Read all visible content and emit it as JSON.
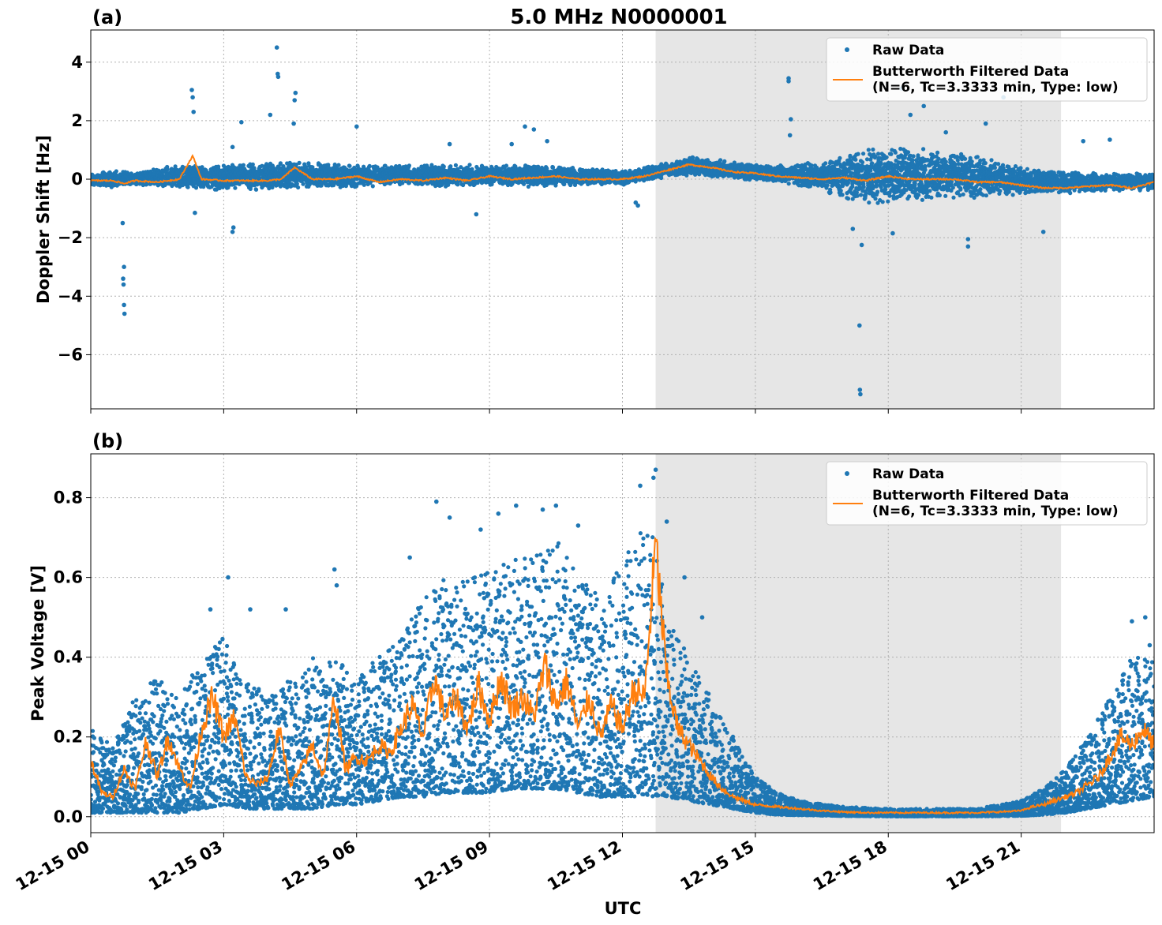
{
  "title": "5.0 MHz N0000001",
  "xlabel": "UTC",
  "x_tick_labels": [
    "12-15 00",
    "12-15 03",
    "12-15 06",
    "12-15 09",
    "12-15 12",
    "12-15 15",
    "12-15 18",
    "12-15 21"
  ],
  "colors": {
    "raw": "#1f77b4",
    "filtered": "#ff7f0e",
    "shade": "#e6e6e6",
    "grid": "#b0b0b0"
  },
  "legend": {
    "raw_label": "Raw Data",
    "filtered_label_line1": "Butterworth Filtered Data",
    "filtered_label_line2": "(N=6, Tc=3.3333 min, Type: low)"
  },
  "chart_data": [
    {
      "type": "scatter",
      "panel_label": "(a)",
      "ylabel": "Doppler Shift [Hz]",
      "xlim_hours": [
        0,
        24
      ],
      "ylim": [
        -7.85,
        5.1
      ],
      "y_ticks": [
        4,
        2,
        0,
        -2,
        -4,
        -6
      ],
      "y_tick_labels": [
        "4",
        "2",
        "0",
        "−2",
        "−4",
        "−6"
      ],
      "shaded_region_hours": [
        12.75,
        21.9
      ],
      "grid": true,
      "legend_position": "top-right",
      "series": [
        {
          "name": "Raw Data",
          "style": "points",
          "band": [
            [
              0,
              -0.25,
              0.2
            ],
            [
              0.5,
              -0.3,
              0.3
            ],
            [
              1,
              -0.2,
              0.25
            ],
            [
              2,
              -0.3,
              0.5
            ],
            [
              3,
              -0.4,
              0.5
            ],
            [
              4,
              -0.4,
              0.6
            ],
            [
              5,
              -0.3,
              0.6
            ],
            [
              6,
              -0.3,
              0.5
            ],
            [
              7,
              -0.2,
              0.5
            ],
            [
              8,
              -0.3,
              0.5
            ],
            [
              9,
              -0.2,
              0.5
            ],
            [
              10,
              -0.3,
              0.5
            ],
            [
              11,
              -0.2,
              0.4
            ],
            [
              12,
              -0.2,
              0.3
            ],
            [
              12.75,
              0.0,
              0.5
            ],
            [
              13.5,
              0.1,
              0.8
            ],
            [
              14.5,
              0.0,
              0.6
            ],
            [
              15.5,
              -0.1,
              0.5
            ],
            [
              16.5,
              -0.4,
              0.6
            ],
            [
              17.5,
              -0.9,
              1.1
            ],
            [
              18.5,
              -0.8,
              1.1
            ],
            [
              19.5,
              -0.7,
              1.0
            ],
            [
              20.5,
              -0.6,
              0.6
            ],
            [
              21.9,
              -0.5,
              0.3
            ],
            [
              23,
              -0.4,
              0.2
            ],
            [
              24,
              -0.4,
              0.2
            ]
          ],
          "outliers": [
            [
              0.72,
              -1.5
            ],
            [
              0.75,
              -3.0
            ],
            [
              0.73,
              -3.4
            ],
            [
              0.74,
              -3.6
            ],
            [
              0.75,
              -4.3
            ],
            [
              0.76,
              -4.6
            ],
            [
              2.28,
              3.05
            ],
            [
              2.3,
              2.8
            ],
            [
              2.32,
              2.3
            ],
            [
              2.35,
              -1.15
            ],
            [
              3.2,
              -1.8
            ],
            [
              3.22,
              -1.65
            ],
            [
              3.2,
              1.1
            ],
            [
              3.4,
              1.95
            ],
            [
              4.2,
              4.5
            ],
            [
              4.22,
              3.6
            ],
            [
              4.23,
              3.5
            ],
            [
              4.05,
              2.2
            ],
            [
              4.62,
              2.95
            ],
            [
              4.6,
              2.7
            ],
            [
              4.58,
              1.9
            ],
            [
              6.0,
              1.8
            ],
            [
              8.1,
              1.2
            ],
            [
              8.7,
              -1.2
            ],
            [
              9.5,
              1.2
            ],
            [
              9.8,
              1.8
            ],
            [
              10.0,
              1.7
            ],
            [
              10.3,
              1.3
            ],
            [
              12.3,
              -0.8
            ],
            [
              12.35,
              -0.9
            ],
            [
              15.75,
              3.45
            ],
            [
              15.75,
              3.35
            ],
            [
              15.8,
              2.05
            ],
            [
              15.78,
              1.5
            ],
            [
              17.35,
              -5.0
            ],
            [
              17.36,
              -7.2
            ],
            [
              17.37,
              -7.35
            ],
            [
              17.2,
              -1.7
            ],
            [
              17.4,
              -2.25
            ],
            [
              18.1,
              -1.85
            ],
            [
              18.3,
              3.1
            ],
            [
              18.5,
              2.2
            ],
            [
              18.8,
              2.5
            ],
            [
              19.3,
              1.6
            ],
            [
              19.8,
              -2.05
            ],
            [
              19.8,
              -2.3
            ],
            [
              20.2,
              1.9
            ],
            [
              20.6,
              2.8
            ],
            [
              21.5,
              -1.8
            ],
            [
              23.0,
              1.35
            ],
            [
              22.4,
              1.3
            ]
          ]
        },
        {
          "name": "Butterworth Filtered Data",
          "style": "line",
          "x": [
            0,
            0.5,
            0.75,
            1,
            1.5,
            2,
            2.3,
            2.5,
            3,
            3.5,
            4,
            4.3,
            4.6,
            5,
            5.5,
            6,
            6.5,
            7,
            7.5,
            8,
            8.5,
            9,
            9.5,
            10,
            10.5,
            11,
            11.5,
            12,
            12.5,
            12.75,
            13,
            13.5,
            14,
            14.5,
            15,
            15.5,
            16,
            16.5,
            17,
            17.5,
            18,
            18.5,
            19,
            19.5,
            20,
            20.5,
            21,
            21.5,
            22,
            22.5,
            23,
            23.5,
            24
          ],
          "y": [
            -0.05,
            -0.05,
            -0.15,
            -0.05,
            -0.1,
            0.0,
            0.8,
            0.0,
            -0.05,
            -0.05,
            -0.05,
            0.0,
            0.4,
            0.0,
            0.0,
            0.1,
            -0.1,
            0.0,
            -0.05,
            0.05,
            -0.05,
            0.1,
            0.0,
            0.05,
            0.1,
            0.0,
            0.0,
            0.0,
            0.1,
            0.2,
            0.3,
            0.5,
            0.4,
            0.25,
            0.2,
            0.1,
            0.05,
            0.0,
            0.05,
            -0.05,
            0.1,
            0.0,
            0.0,
            0.0,
            -0.1,
            -0.1,
            -0.2,
            -0.3,
            -0.3,
            -0.25,
            -0.2,
            -0.3,
            -0.1
          ]
        }
      ]
    },
    {
      "type": "scatter",
      "panel_label": "(b)",
      "ylabel": "Peak Voltage [V]",
      "xlim_hours": [
        0,
        24
      ],
      "ylim": [
        -0.04,
        0.91
      ],
      "y_ticks": [
        0.0,
        0.2,
        0.4,
        0.6,
        0.8
      ],
      "y_tick_labels": [
        "0.0",
        "0.2",
        "0.4",
        "0.6",
        "0.8"
      ],
      "shaded_region_hours": [
        12.75,
        21.9
      ],
      "grid": true,
      "legend_position": "top-right",
      "series": [
        {
          "name": "Raw Data",
          "style": "points",
          "band": [
            [
              0,
              0.01,
              0.22
            ],
            [
              0.5,
              0.01,
              0.18
            ],
            [
              1,
              0.01,
              0.3
            ],
            [
              1.5,
              0.01,
              0.35
            ],
            [
              2,
              0.01,
              0.3
            ],
            [
              2.5,
              0.02,
              0.4
            ],
            [
              3,
              0.03,
              0.45
            ],
            [
              3.5,
              0.02,
              0.35
            ],
            [
              4,
              0.02,
              0.3
            ],
            [
              4.5,
              0.02,
              0.35
            ],
            [
              5,
              0.02,
              0.4
            ],
            [
              5.5,
              0.03,
              0.4
            ],
            [
              6,
              0.03,
              0.35
            ],
            [
              6.5,
              0.04,
              0.4
            ],
            [
              7,
              0.05,
              0.45
            ],
            [
              7.5,
              0.05,
              0.55
            ],
            [
              8,
              0.06,
              0.6
            ],
            [
              8.5,
              0.06,
              0.6
            ],
            [
              9,
              0.06,
              0.62
            ],
            [
              9.5,
              0.07,
              0.65
            ],
            [
              10,
              0.07,
              0.65
            ],
            [
              10.5,
              0.07,
              0.7
            ],
            [
              11,
              0.06,
              0.6
            ],
            [
              11.5,
              0.05,
              0.55
            ],
            [
              12,
              0.05,
              0.65
            ],
            [
              12.5,
              0.05,
              0.75
            ],
            [
              12.75,
              0.05,
              0.7
            ],
            [
              13,
              0.05,
              0.5
            ],
            [
              13.5,
              0.04,
              0.4
            ],
            [
              14,
              0.03,
              0.3
            ],
            [
              14.5,
              0.02,
              0.2
            ],
            [
              15,
              0.01,
              0.1
            ],
            [
              15.5,
              0.005,
              0.06
            ],
            [
              16,
              0.004,
              0.04
            ],
            [
              17,
              0.002,
              0.025
            ],
            [
              18,
              0.001,
              0.02
            ],
            [
              19,
              0.001,
              0.02
            ],
            [
              20,
              0.001,
              0.02
            ],
            [
              21,
              0.002,
              0.04
            ],
            [
              21.5,
              0.005,
              0.07
            ],
            [
              22,
              0.01,
              0.12
            ],
            [
              22.5,
              0.02,
              0.2
            ],
            [
              23,
              0.03,
              0.3
            ],
            [
              23.5,
              0.04,
              0.4
            ],
            [
              24,
              0.05,
              0.4
            ]
          ],
          "outliers": [
            [
              2.7,
              0.52
            ],
            [
              3.1,
              0.6
            ],
            [
              3.6,
              0.52
            ],
            [
              4.4,
              0.52
            ],
            [
              5.5,
              0.62
            ],
            [
              5.55,
              0.58
            ],
            [
              7.2,
              0.65
            ],
            [
              7.8,
              0.79
            ],
            [
              8.1,
              0.75
            ],
            [
              8.8,
              0.72
            ],
            [
              9.2,
              0.76
            ],
            [
              9.6,
              0.78
            ],
            [
              10.2,
              0.77
            ],
            [
              10.5,
              0.78
            ],
            [
              11.0,
              0.73
            ],
            [
              12.4,
              0.83
            ],
            [
              12.7,
              0.85
            ],
            [
              12.75,
              0.87
            ],
            [
              13.0,
              0.74
            ],
            [
              13.4,
              0.6
            ],
            [
              13.8,
              0.5
            ],
            [
              23.5,
              0.49
            ],
            [
              23.8,
              0.5
            ],
            [
              23.9,
              0.43
            ]
          ]
        },
        {
          "name": "Butterworth Filtered Data",
          "style": "line",
          "x": [
            0,
            0.25,
            0.5,
            0.75,
            1,
            1.25,
            1.5,
            1.75,
            2,
            2.25,
            2.5,
            2.75,
            3,
            3.25,
            3.5,
            3.75,
            4,
            4.25,
            4.5,
            4.75,
            5,
            5.25,
            5.5,
            5.75,
            6,
            6.25,
            6.5,
            6.75,
            7,
            7.25,
            7.5,
            7.75,
            8,
            8.25,
            8.5,
            8.75,
            9,
            9.25,
            9.5,
            9.75,
            10,
            10.25,
            10.5,
            10.75,
            11,
            11.25,
            11.5,
            11.75,
            12,
            12.25,
            12.5,
            12.75,
            13,
            13.25,
            13.5,
            13.75,
            14,
            14.25,
            14.5,
            14.75,
            15,
            15.5,
            16,
            16.5,
            17,
            17.5,
            18,
            18.5,
            19,
            19.5,
            20,
            20.5,
            21,
            21.25,
            21.5,
            21.75,
            22,
            22.25,
            22.5,
            22.75,
            23,
            23.25,
            23.5,
            23.75,
            24
          ],
          "y": [
            0.14,
            0.06,
            0.05,
            0.12,
            0.07,
            0.19,
            0.1,
            0.2,
            0.12,
            0.07,
            0.22,
            0.3,
            0.2,
            0.25,
            0.1,
            0.08,
            0.1,
            0.22,
            0.08,
            0.12,
            0.18,
            0.1,
            0.3,
            0.12,
            0.15,
            0.14,
            0.18,
            0.16,
            0.22,
            0.28,
            0.2,
            0.35,
            0.25,
            0.3,
            0.22,
            0.33,
            0.24,
            0.35,
            0.27,
            0.3,
            0.25,
            0.38,
            0.28,
            0.34,
            0.22,
            0.3,
            0.2,
            0.28,
            0.22,
            0.32,
            0.3,
            0.68,
            0.35,
            0.22,
            0.18,
            0.14,
            0.1,
            0.07,
            0.05,
            0.04,
            0.03,
            0.025,
            0.02,
            0.015,
            0.012,
            0.01,
            0.01,
            0.01,
            0.01,
            0.01,
            0.01,
            0.012,
            0.015,
            0.025,
            0.03,
            0.04,
            0.05,
            0.06,
            0.08,
            0.1,
            0.15,
            0.2,
            0.18,
            0.22,
            0.18
          ]
        }
      ]
    }
  ]
}
